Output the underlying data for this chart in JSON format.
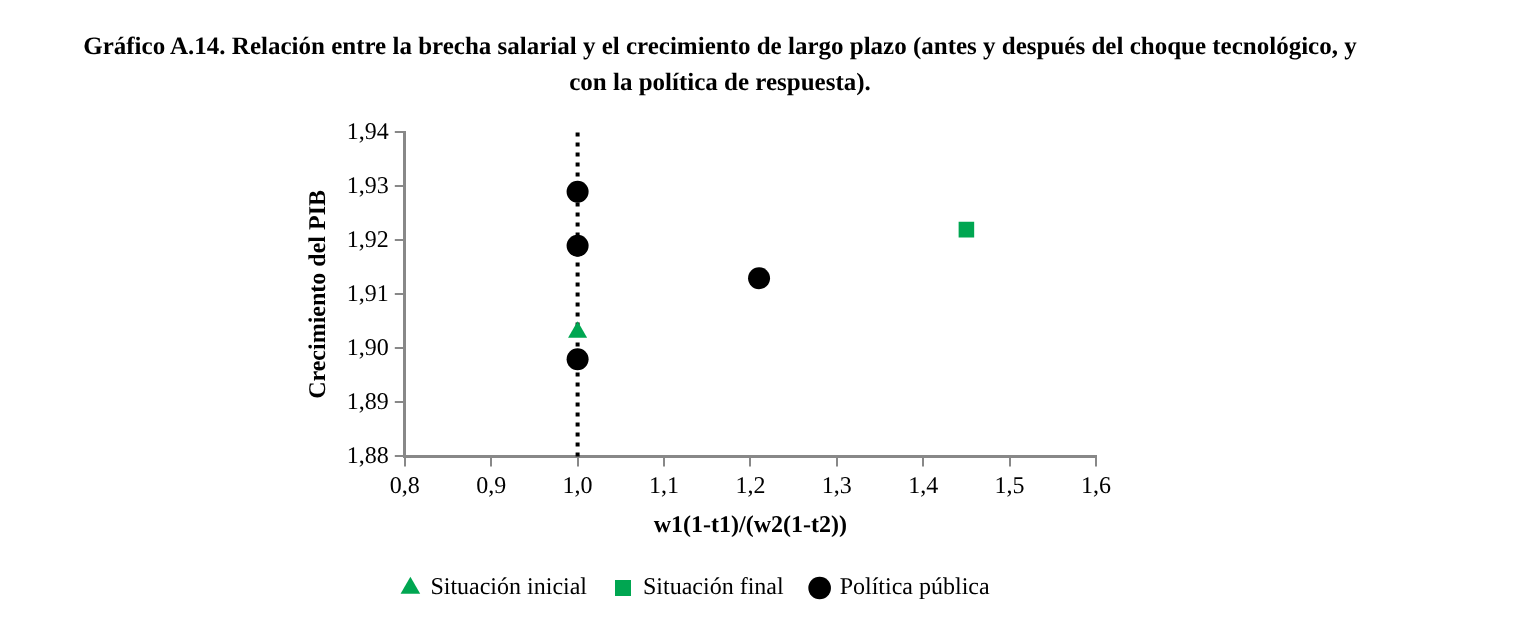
{
  "chart_data": {
    "type": "scatter",
    "title": "Gráfico A.14. Relación entre la brecha salarial y el crecimiento de largo plazo (antes y después del choque tecnológico, y con la política de respuesta).",
    "xlabel": "w1(1-t1)/(w2(1-t2))",
    "ylabel": "Crecimiento del PIB",
    "series": [
      {
        "name": "Situación inicial",
        "color": "#00a651",
        "marker": "triangle",
        "x": [
          1.0
        ],
        "values": [
          1.903
        ]
      },
      {
        "name": "Situación final",
        "color": "#00a651",
        "marker": "square",
        "x": [
          1.45
        ],
        "values": [
          1.922
        ]
      },
      {
        "name": "Política pública",
        "color": "#000000",
        "marker": "circle",
        "x": [
          1.0,
          1.0,
          1.0,
          1.21
        ],
        "values": [
          1.929,
          1.919,
          1.898,
          1.913
        ]
      }
    ],
    "xlim": [
      0.8,
      1.6
    ],
    "xticks": [
      {
        "value": 0.8,
        "label": "0,8"
      },
      {
        "value": 0.9,
        "label": "0,9"
      },
      {
        "value": 1.0,
        "label": "1,0"
      },
      {
        "value": 1.1,
        "label": "1,1"
      },
      {
        "value": 1.2,
        "label": "1,2"
      },
      {
        "value": 1.3,
        "label": "1,3"
      },
      {
        "value": 1.4,
        "label": "1,4"
      },
      {
        "value": 1.5,
        "label": "1,5"
      },
      {
        "value": 1.6,
        "label": "1,6"
      }
    ],
    "ylim": [
      1.88,
      1.94
    ],
    "yticks": [
      {
        "value": 1.88,
        "label": "1,88"
      },
      {
        "value": 1.89,
        "label": "1,89"
      },
      {
        "value": 1.9,
        "label": "1,90"
      },
      {
        "value": 1.91,
        "label": "1,91"
      },
      {
        "value": 1.92,
        "label": "1,92"
      },
      {
        "value": 1.93,
        "label": "1,93"
      },
      {
        "value": 1.94,
        "label": "1,94"
      }
    ],
    "ref_lines": [
      {
        "axis": "x",
        "value": 1.0,
        "color": "#000000",
        "line_style": "dotted"
      }
    ],
    "grid": false,
    "legend": "bottom"
  }
}
